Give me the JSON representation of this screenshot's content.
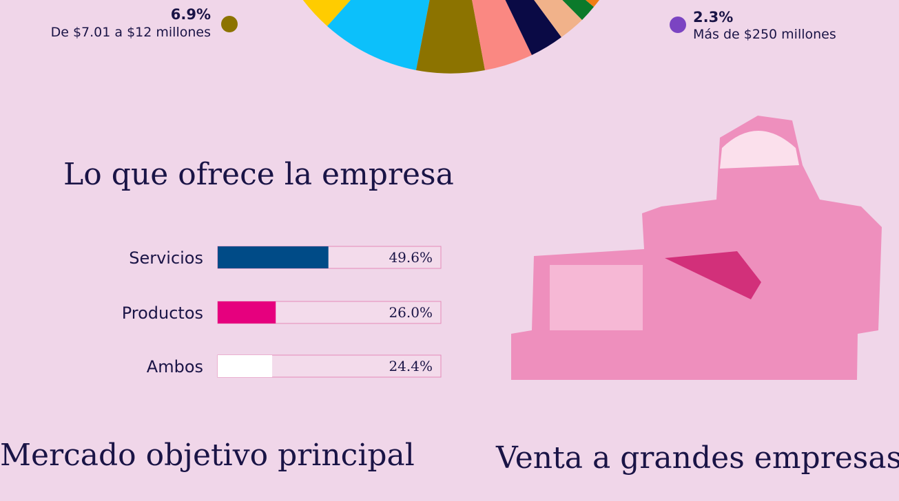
{
  "pie_legend": [
    {
      "value": "6.9%",
      "label": "De $7.01 a $12 millones",
      "color": "#8c7300"
    },
    {
      "value": "2.3%",
      "label": "Más de $250 millones",
      "color": "#7b44c2"
    }
  ],
  "headings": {
    "mercado": "Mercado objetivo principal",
    "venta": "Venta a grandes empresas"
  },
  "chart_data": {
    "type": "bar",
    "orientation": "horizontal",
    "title": "Lo que ofrece la empresa",
    "categories": [
      "Servicios",
      "Productos",
      "Ambos"
    ],
    "values": [
      49.6,
      26.0,
      24.4
    ],
    "value_labels": [
      "49.6%",
      "26.0%",
      "24.4%"
    ],
    "colors": [
      "#004b87",
      "#e6007e",
      "#ffffff"
    ],
    "xlim": [
      0,
      100
    ]
  }
}
